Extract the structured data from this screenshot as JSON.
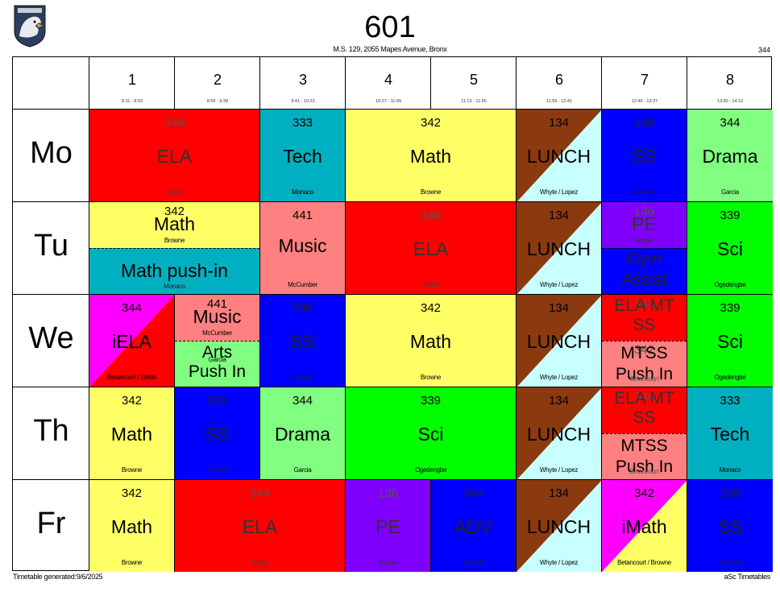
{
  "header": {
    "title": "601",
    "subtitle": "M.S. 129, 2055 Mapes Avenue, Bronx",
    "room": "344"
  },
  "footer": {
    "generated": "Timetable generated:9/6/2025",
    "brand": "aSc Timetables"
  },
  "periods": [
    {
      "num": "1",
      "time": "8:11 - 8:53"
    },
    {
      "num": "2",
      "time": "8:56 - 9:38"
    },
    {
      "num": "3",
      "time": "9:41 - 10:23"
    },
    {
      "num": "4",
      "time": "10:27 - 11:09"
    },
    {
      "num": "5",
      "time": "11:13 - 11:55"
    },
    {
      "num": "6",
      "time": "11:59 - 12:41"
    },
    {
      "num": "7",
      "time": "12:45 - 13:27"
    },
    {
      "num": "8",
      "time": "13:30 - 14:12"
    }
  ],
  "days": [
    "Mo",
    "Tu",
    "We",
    "Th",
    "Fr"
  ],
  "cells": {
    "mo_ela": {
      "room": "344",
      "subject": "ELA",
      "teacher": "Webb"
    },
    "mo_tech": {
      "room": "333",
      "subject": "Tech",
      "teacher": "Monaco"
    },
    "mo_math": {
      "room": "342",
      "subject": "Math",
      "teacher": "Browne"
    },
    "mo_lunch": {
      "room": "134",
      "subject": "LUNCH",
      "teacher": "Whyte / Lopez"
    },
    "mo_ss": {
      "room": "338",
      "subject": "SS",
      "teacher": "Caswell"
    },
    "mo_drama": {
      "room": "344",
      "subject": "Drama",
      "teacher": "Garcia"
    },
    "tu_math": {
      "room": "342",
      "subject": "Math",
      "teacher": "Browne"
    },
    "tu_mathpush": {
      "subject": "Math push-in",
      "teacher": "Monaco"
    },
    "tu_music": {
      "room": "441",
      "subject": "Music",
      "teacher": "McCumber"
    },
    "tu_ela": {
      "room": "344",
      "subject": "ELA",
      "teacher": "Webb"
    },
    "tu_lunch": {
      "room": "134",
      "subject": "LUNCH",
      "teacher": "Whyte / Lopez"
    },
    "tu_pe": {
      "room": "136",
      "subject": "PE",
      "teacher": "Borges"
    },
    "tu_gym": {
      "subject": "Gym Assist"
    },
    "tu_sci": {
      "room": "339",
      "subject": "Sci",
      "teacher": "Ogedengbe"
    },
    "we_iela": {
      "room": "344",
      "subject": "iELA",
      "teacher": "Betancourt / Webb"
    },
    "we_music": {
      "room": "441",
      "subject": "Music",
      "teacher": "McCumber"
    },
    "we_arts": {
      "subject": "Arts Push In",
      "teacher": "Garcia"
    },
    "we_ss": {
      "room": "339",
      "subject": "SS",
      "teacher": "Caswell"
    },
    "we_math": {
      "room": "342",
      "subject": "Math",
      "teacher": "Browne"
    },
    "we_lunch": {
      "room": "134",
      "subject": "LUNCH",
      "teacher": "Whyte / Lopez"
    },
    "we_elamt": {
      "room": "344",
      "subject": "ELA MT SS"
    },
    "we_mtss": {
      "room": "342",
      "subject": "MTSS Push In",
      "teacher": "Betancourt"
    },
    "we_sci": {
      "room": "339",
      "subject": "Sci",
      "teacher": "Ogedengbe"
    },
    "th_math": {
      "room": "342",
      "subject": "Math",
      "teacher": "Browne"
    },
    "th_ss": {
      "room": "339",
      "subject": "SS",
      "teacher": "Caswell"
    },
    "th_drama": {
      "room": "344",
      "subject": "Drama",
      "teacher": "Garcia"
    },
    "th_sci": {
      "room": "339",
      "subject": "Sci",
      "teacher": "Ogedengbe"
    },
    "th_lunch": {
      "room": "134",
      "subject": "LUNCH",
      "teacher": "Whyte / Lopez"
    },
    "th_elamt": {
      "room": "344",
      "subject": "ELA MT SS"
    },
    "th_mtss": {
      "subject": "MTSS Push In",
      "teacher": "Betancourt"
    },
    "th_tech": {
      "room": "333",
      "subject": "Tech",
      "teacher": "Monaco"
    },
    "fr_math": {
      "room": "342",
      "subject": "Math",
      "teacher": "Browne"
    },
    "fr_ela": {
      "room": "344",
      "subject": "ELA",
      "teacher": "Webb"
    },
    "fr_pe": {
      "room": "136",
      "subject": "PE",
      "teacher": "Borges"
    },
    "fr_adv": {
      "room": "344",
      "subject": "ADV",
      "teacher": "Caswell"
    },
    "fr_lunch": {
      "room": "134",
      "subject": "LUNCH",
      "teacher": "Whyte / Lopez"
    },
    "fr_imath": {
      "room": "342",
      "subject": "iMath",
      "teacher": "Betancourt / Browne"
    },
    "fr_ss": {
      "room": "339",
      "subject": "SS",
      "teacher": "Caswell"
    }
  },
  "colors": {
    "ela": "#ff0000",
    "tech": "#00b0c0",
    "math": "#ffff66",
    "lunch_a": "#8b3a10",
    "lunch_b": "#c8ffff",
    "ss": "#0000ff",
    "drama": "#80ff80",
    "music": "#ff8080",
    "pe": "#7f00ff",
    "sci": "#00ff00",
    "ielamagenta": "#ff00ff",
    "arts": "#80ff80"
  }
}
